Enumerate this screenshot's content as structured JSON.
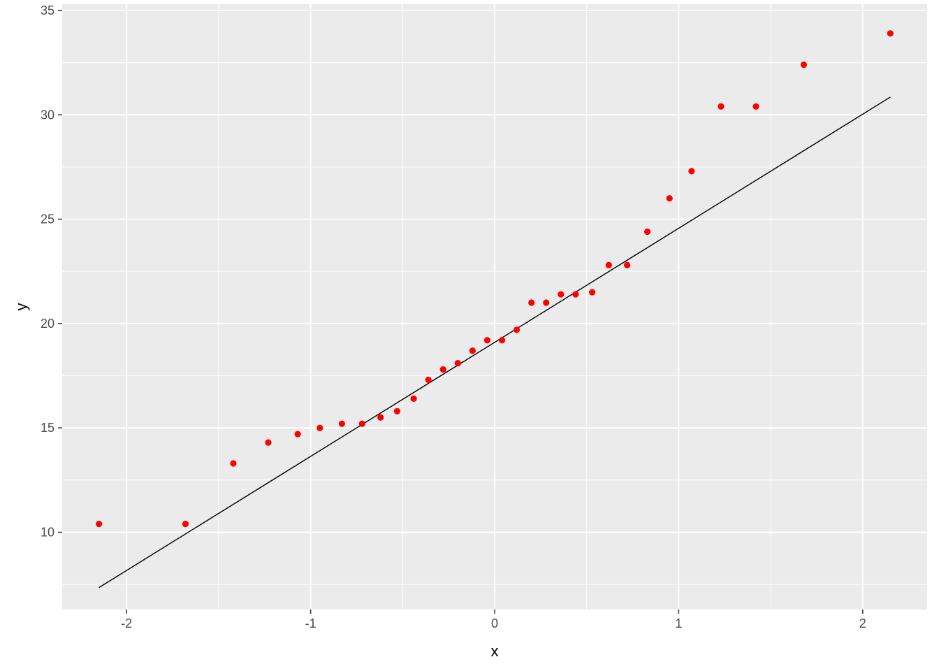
{
  "chart_data": {
    "type": "scatter",
    "title": "",
    "xlabel": "x",
    "ylabel": "y",
    "xlim": [
      -2.35,
      2.35
    ],
    "ylim": [
      6.3,
      35.3
    ],
    "x_ticks": [
      -2,
      -1,
      0,
      1,
      2
    ],
    "x_tick_labels": [
      "-2",
      "-1",
      "0",
      "1",
      "2"
    ],
    "y_ticks": [
      10,
      15,
      20,
      25,
      30,
      35
    ],
    "y_tick_labels": [
      "10",
      "15",
      "20",
      "25",
      "30",
      "35"
    ],
    "grid": true,
    "legend": "none",
    "points": {
      "color": "#ff0000",
      "x": [
        -2.15,
        -1.68,
        -1.42,
        -1.23,
        -1.07,
        -0.95,
        -0.83,
        -0.72,
        -0.62,
        -0.53,
        -0.44,
        -0.36,
        -0.28,
        -0.2,
        -0.12,
        -0.04,
        0.04,
        0.12,
        0.2,
        0.28,
        0.36,
        0.44,
        0.53,
        0.62,
        0.72,
        0.83,
        0.95,
        1.07,
        1.23,
        1.42,
        1.68,
        2.15
      ],
      "y": [
        10.4,
        10.4,
        13.3,
        14.3,
        14.7,
        15.0,
        15.2,
        15.2,
        15.5,
        15.8,
        16.4,
        17.3,
        17.8,
        18.1,
        18.7,
        19.2,
        19.2,
        19.7,
        21.0,
        21.0,
        21.4,
        21.4,
        21.5,
        22.8,
        22.8,
        24.4,
        26.0,
        27.3,
        30.4,
        30.4,
        32.4,
        33.9
      ]
    },
    "reference_line": {
      "color": "#000000",
      "x": [
        -2.15,
        2.15
      ],
      "y": [
        7.35,
        30.85
      ]
    }
  }
}
